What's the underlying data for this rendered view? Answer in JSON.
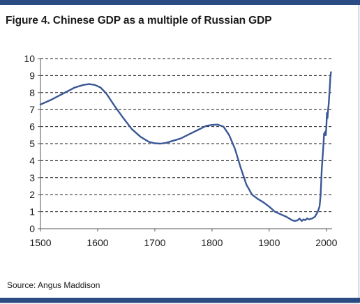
{
  "header": {
    "title": "Figure 4. Chinese GDP as a multiple of Russian GDP"
  },
  "footer": {
    "source": "Source: Angus Maddison"
  },
  "colors": {
    "line": "#3a5796",
    "rule": "#2b4b84",
    "grid": "#1a1a1a"
  },
  "chart_data": {
    "type": "line",
    "title": "Figure 4. Chinese GDP as a multiple of Russian GDP",
    "xlabel": "",
    "ylabel": "",
    "xlim": [
      1500,
      2010
    ],
    "ylim": [
      0,
      10
    ],
    "xticks": [
      1500,
      1600,
      1700,
      1800,
      1900,
      2000
    ],
    "yticks": [
      0,
      1,
      2,
      3,
      4,
      5,
      6,
      7,
      8,
      9,
      10
    ],
    "grid": "horizontal-dashed",
    "legend": "none",
    "series": [
      {
        "x": [
          1500,
          1520,
          1540,
          1560,
          1575,
          1585,
          1595,
          1605,
          1615,
          1630,
          1645,
          1660,
          1675,
          1690,
          1700,
          1710,
          1720,
          1730,
          1745,
          1760,
          1775,
          1790,
          1800,
          1810,
          1820,
          1830,
          1840,
          1850,
          1860,
          1870,
          1880,
          1890,
          1900,
          1910,
          1920,
          1930,
          1940,
          1945,
          1950,
          1953,
          1957,
          1960,
          1963,
          1966,
          1970,
          1975,
          1980,
          1985,
          1988,
          1990,
          1992,
          1994,
          1995,
          1996,
          1997,
          1998,
          1999,
          2000,
          2001,
          2002,
          2003,
          2004,
          2005,
          2006,
          2007,
          2008
        ],
        "y": [
          7.3,
          7.6,
          7.95,
          8.3,
          8.45,
          8.5,
          8.45,
          8.3,
          7.95,
          7.2,
          6.5,
          5.85,
          5.4,
          5.1,
          5.02,
          5.0,
          5.05,
          5.15,
          5.3,
          5.55,
          5.8,
          6.05,
          6.1,
          6.12,
          6.0,
          5.5,
          4.7,
          3.6,
          2.6,
          2.0,
          1.75,
          1.55,
          1.3,
          1.0,
          0.85,
          0.7,
          0.5,
          0.45,
          0.5,
          0.6,
          0.45,
          0.55,
          0.5,
          0.6,
          0.55,
          0.6,
          0.7,
          1.0,
          1.3,
          2.0,
          3.5,
          4.5,
          5.0,
          5.6,
          5.5,
          5.7,
          5.5,
          6.0,
          6.8,
          6.5,
          7.0,
          7.3,
          7.8,
          8.3,
          8.9,
          9.2
        ]
      }
    ]
  }
}
